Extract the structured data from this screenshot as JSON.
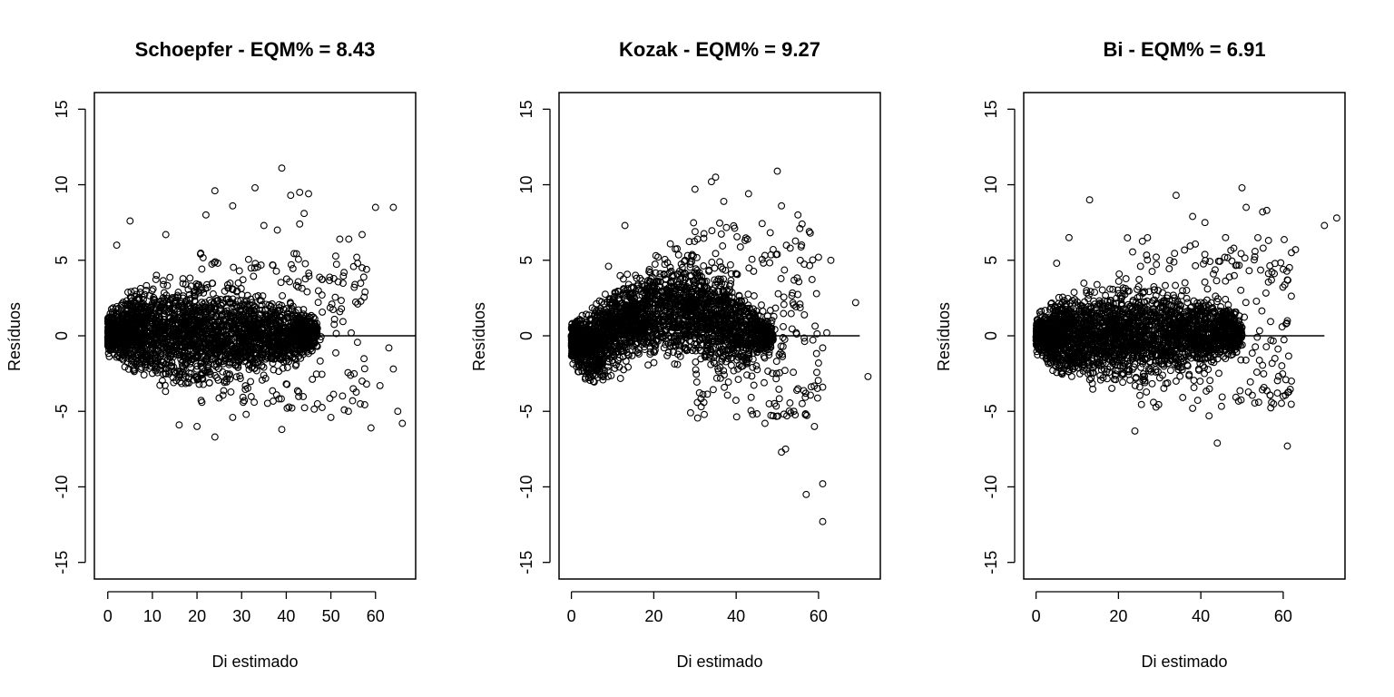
{
  "chart_data": [
    {
      "type": "scatter",
      "title": "Schoepfer - EQM% =  8.43",
      "xlabel": "Di estimado",
      "ylabel": "Resíduos",
      "xlim": [
        -3,
        69
      ],
      "ylim": [
        -16.1,
        16.1
      ],
      "xticks": [
        0,
        10,
        20,
        30,
        40,
        50,
        60
      ],
      "yticks": [
        -15,
        -10,
        -5,
        0,
        5,
        10,
        15
      ],
      "hline": {
        "y": 0,
        "x_from": 0,
        "x_to": 69
      },
      "cloud": [
        [
          0,
          -1.5,
          1.5
        ],
        [
          3,
          -2.6,
          3.2
        ],
        [
          6,
          -3.2,
          3.8
        ],
        [
          10,
          -3.8,
          4.4
        ],
        [
          15,
          -4.2,
          4.7
        ],
        [
          20,
          -4.2,
          4.5
        ],
        [
          25,
          -4.0,
          4.2
        ],
        [
          30,
          -3.6,
          3.9
        ],
        [
          35,
          -3.2,
          3.4
        ],
        [
          40,
          -2.6,
          2.8
        ],
        [
          44,
          -2.0,
          2.2
        ],
        [
          47,
          -1.0,
          1.2
        ]
      ],
      "sparse": {
        "x_from": 20,
        "x_to": 58,
        "y_lo": -5,
        "y_hi": 5.5
      },
      "points": [
        [
          39,
          11.1
        ],
        [
          24,
          9.6
        ],
        [
          33,
          9.8
        ],
        [
          41,
          9.3
        ],
        [
          43,
          9.5
        ],
        [
          45,
          9.4
        ],
        [
          44,
          8.1
        ],
        [
          60,
          8.5
        ],
        [
          64,
          8.5
        ],
        [
          22,
          8.0
        ],
        [
          28,
          8.6
        ],
        [
          5,
          7.6
        ],
        [
          35,
          7.3
        ],
        [
          38,
          7.0
        ],
        [
          43,
          7.4
        ],
        [
          57,
          6.7
        ],
        [
          13,
          6.7
        ],
        [
          2,
          6.0
        ],
        [
          52,
          6.4
        ],
        [
          54,
          6.4
        ],
        [
          56,
          4.8
        ],
        [
          57,
          4.5
        ],
        [
          58,
          4.4
        ],
        [
          63,
          -0.8
        ],
        [
          61,
          -3.3
        ],
        [
          64,
          -2.2
        ],
        [
          65,
          -5.0
        ],
        [
          66,
          -5.8
        ],
        [
          59,
          -6.1
        ],
        [
          39,
          -6.2
        ],
        [
          24,
          -6.7
        ],
        [
          50,
          -5.4
        ],
        [
          53,
          -4.9
        ],
        [
          16,
          -5.9
        ],
        [
          20,
          -6.0
        ],
        [
          47,
          -4.5
        ],
        [
          55,
          -3.5
        ],
        [
          57,
          -3.0
        ],
        [
          52,
          1.6
        ],
        [
          56,
          2.1
        ],
        [
          48,
          2.7
        ],
        [
          28,
          -5.4
        ],
        [
          31,
          -5.2
        ]
      ]
    },
    {
      "type": "scatter",
      "title": "Kozak - EQM% =  9.27",
      "xlabel": "Di estimado",
      "ylabel": "Resíduos",
      "xlim": [
        -3,
        75
      ],
      "ylim": [
        -16.1,
        16.1
      ],
      "xticks": [
        0,
        20,
        40,
        60
      ],
      "yticks": [
        -15,
        -10,
        -5,
        0,
        5,
        10,
        15
      ],
      "hline": {
        "y": 0,
        "x_from": 0,
        "x_to": 70
      },
      "cloud": [
        [
          0,
          -1.8,
          1.2
        ],
        [
          3,
          -3.6,
          2.2
        ],
        [
          6,
          -4.4,
          3.0
        ],
        [
          10,
          -3.2,
          4.2
        ],
        [
          14,
          -2.8,
          4.8
        ],
        [
          18,
          -2.5,
          5.6
        ],
        [
          22,
          -2.5,
          6.3
        ],
        [
          26,
          -2.6,
          6.6
        ],
        [
          30,
          -2.9,
          6.3
        ],
        [
          34,
          -3.3,
          5.6
        ],
        [
          38,
          -3.4,
          4.8
        ],
        [
          42,
          -3.2,
          3.8
        ],
        [
          46,
          -2.4,
          2.6
        ],
        [
          49,
          -1.0,
          1.2
        ]
      ],
      "sparse": {
        "x_from": 28,
        "x_to": 60,
        "y_lo": -5.5,
        "y_hi": 7.5
      },
      "points": [
        [
          50,
          10.9
        ],
        [
          35,
          10.5
        ],
        [
          34,
          10.2
        ],
        [
          30,
          9.7
        ],
        [
          43,
          9.4
        ],
        [
          37,
          8.9
        ],
        [
          51,
          8.6
        ],
        [
          55,
          8.0
        ],
        [
          58,
          6.8
        ],
        [
          63,
          5.0
        ],
        [
          60,
          5.2
        ],
        [
          69,
          2.2
        ],
        [
          72,
          -2.7
        ],
        [
          57,
          -10.5
        ],
        [
          61,
          -9.8
        ],
        [
          61,
          -12.3
        ],
        [
          51,
          -7.7
        ],
        [
          52,
          -7.5
        ],
        [
          59,
          -6.0
        ],
        [
          47,
          -5.8
        ],
        [
          54,
          -5.0
        ],
        [
          55,
          -3.5
        ],
        [
          61,
          -3.4
        ],
        [
          60,
          -1.8
        ],
        [
          61,
          -0.8
        ],
        [
          62,
          0.2
        ],
        [
          13,
          7.3
        ],
        [
          9,
          4.6
        ],
        [
          56,
          7.4
        ],
        [
          48,
          -4.5
        ],
        [
          44,
          -5.2
        ]
      ]
    },
    {
      "type": "scatter",
      "title": "Bi - EQM% =  6.91",
      "xlabel": "Di estimado",
      "ylabel": "Resíduos",
      "xlim": [
        -3,
        75
      ],
      "ylim": [
        -16.1,
        16.1
      ],
      "xticks": [
        0,
        20,
        40,
        60
      ],
      "yticks": [
        -15,
        -10,
        -5,
        0,
        5,
        10,
        15
      ],
      "hline": {
        "y": 0,
        "x_from": 0,
        "x_to": 70
      },
      "cloud": [
        [
          0,
          -1.3,
          1.3
        ],
        [
          3,
          -2.8,
          2.8
        ],
        [
          6,
          -3.3,
          3.3
        ],
        [
          10,
          -3.7,
          3.8
        ],
        [
          15,
          -3.9,
          4.1
        ],
        [
          20,
          -3.9,
          4.2
        ],
        [
          25,
          -3.7,
          4.0
        ],
        [
          30,
          -3.6,
          3.9
        ],
        [
          35,
          -3.3,
          3.7
        ],
        [
          40,
          -3.0,
          3.5
        ],
        [
          44,
          -2.6,
          3.2
        ],
        [
          47,
          -2.0,
          2.5
        ],
        [
          50,
          -1.2,
          1.4
        ]
      ],
      "sparse": {
        "x_from": 20,
        "x_to": 62,
        "y_lo": -4.8,
        "y_hi": 6.5
      },
      "points": [
        [
          50,
          9.8
        ],
        [
          13,
          9.0
        ],
        [
          34,
          9.3
        ],
        [
          73,
          7.8
        ],
        [
          70,
          7.3
        ],
        [
          55,
          8.2
        ],
        [
          56,
          8.3
        ],
        [
          38,
          7.9
        ],
        [
          41,
          7.5
        ],
        [
          51,
          8.5
        ],
        [
          44,
          -7.1
        ],
        [
          61,
          -7.3
        ],
        [
          24,
          -6.3
        ],
        [
          60,
          -4.0
        ],
        [
          62,
          -3.0
        ],
        [
          58,
          -1.5
        ],
        [
          57,
          -0.3
        ],
        [
          63,
          5.7
        ],
        [
          62,
          5.5
        ],
        [
          60,
          4.4
        ],
        [
          61,
          3.7
        ],
        [
          61,
          1.0
        ],
        [
          42,
          -5.3
        ],
        [
          38,
          -4.8
        ],
        [
          8,
          6.5
        ],
        [
          5,
          4.8
        ],
        [
          46,
          6.5
        ],
        [
          48,
          5.8
        ]
      ]
    }
  ]
}
